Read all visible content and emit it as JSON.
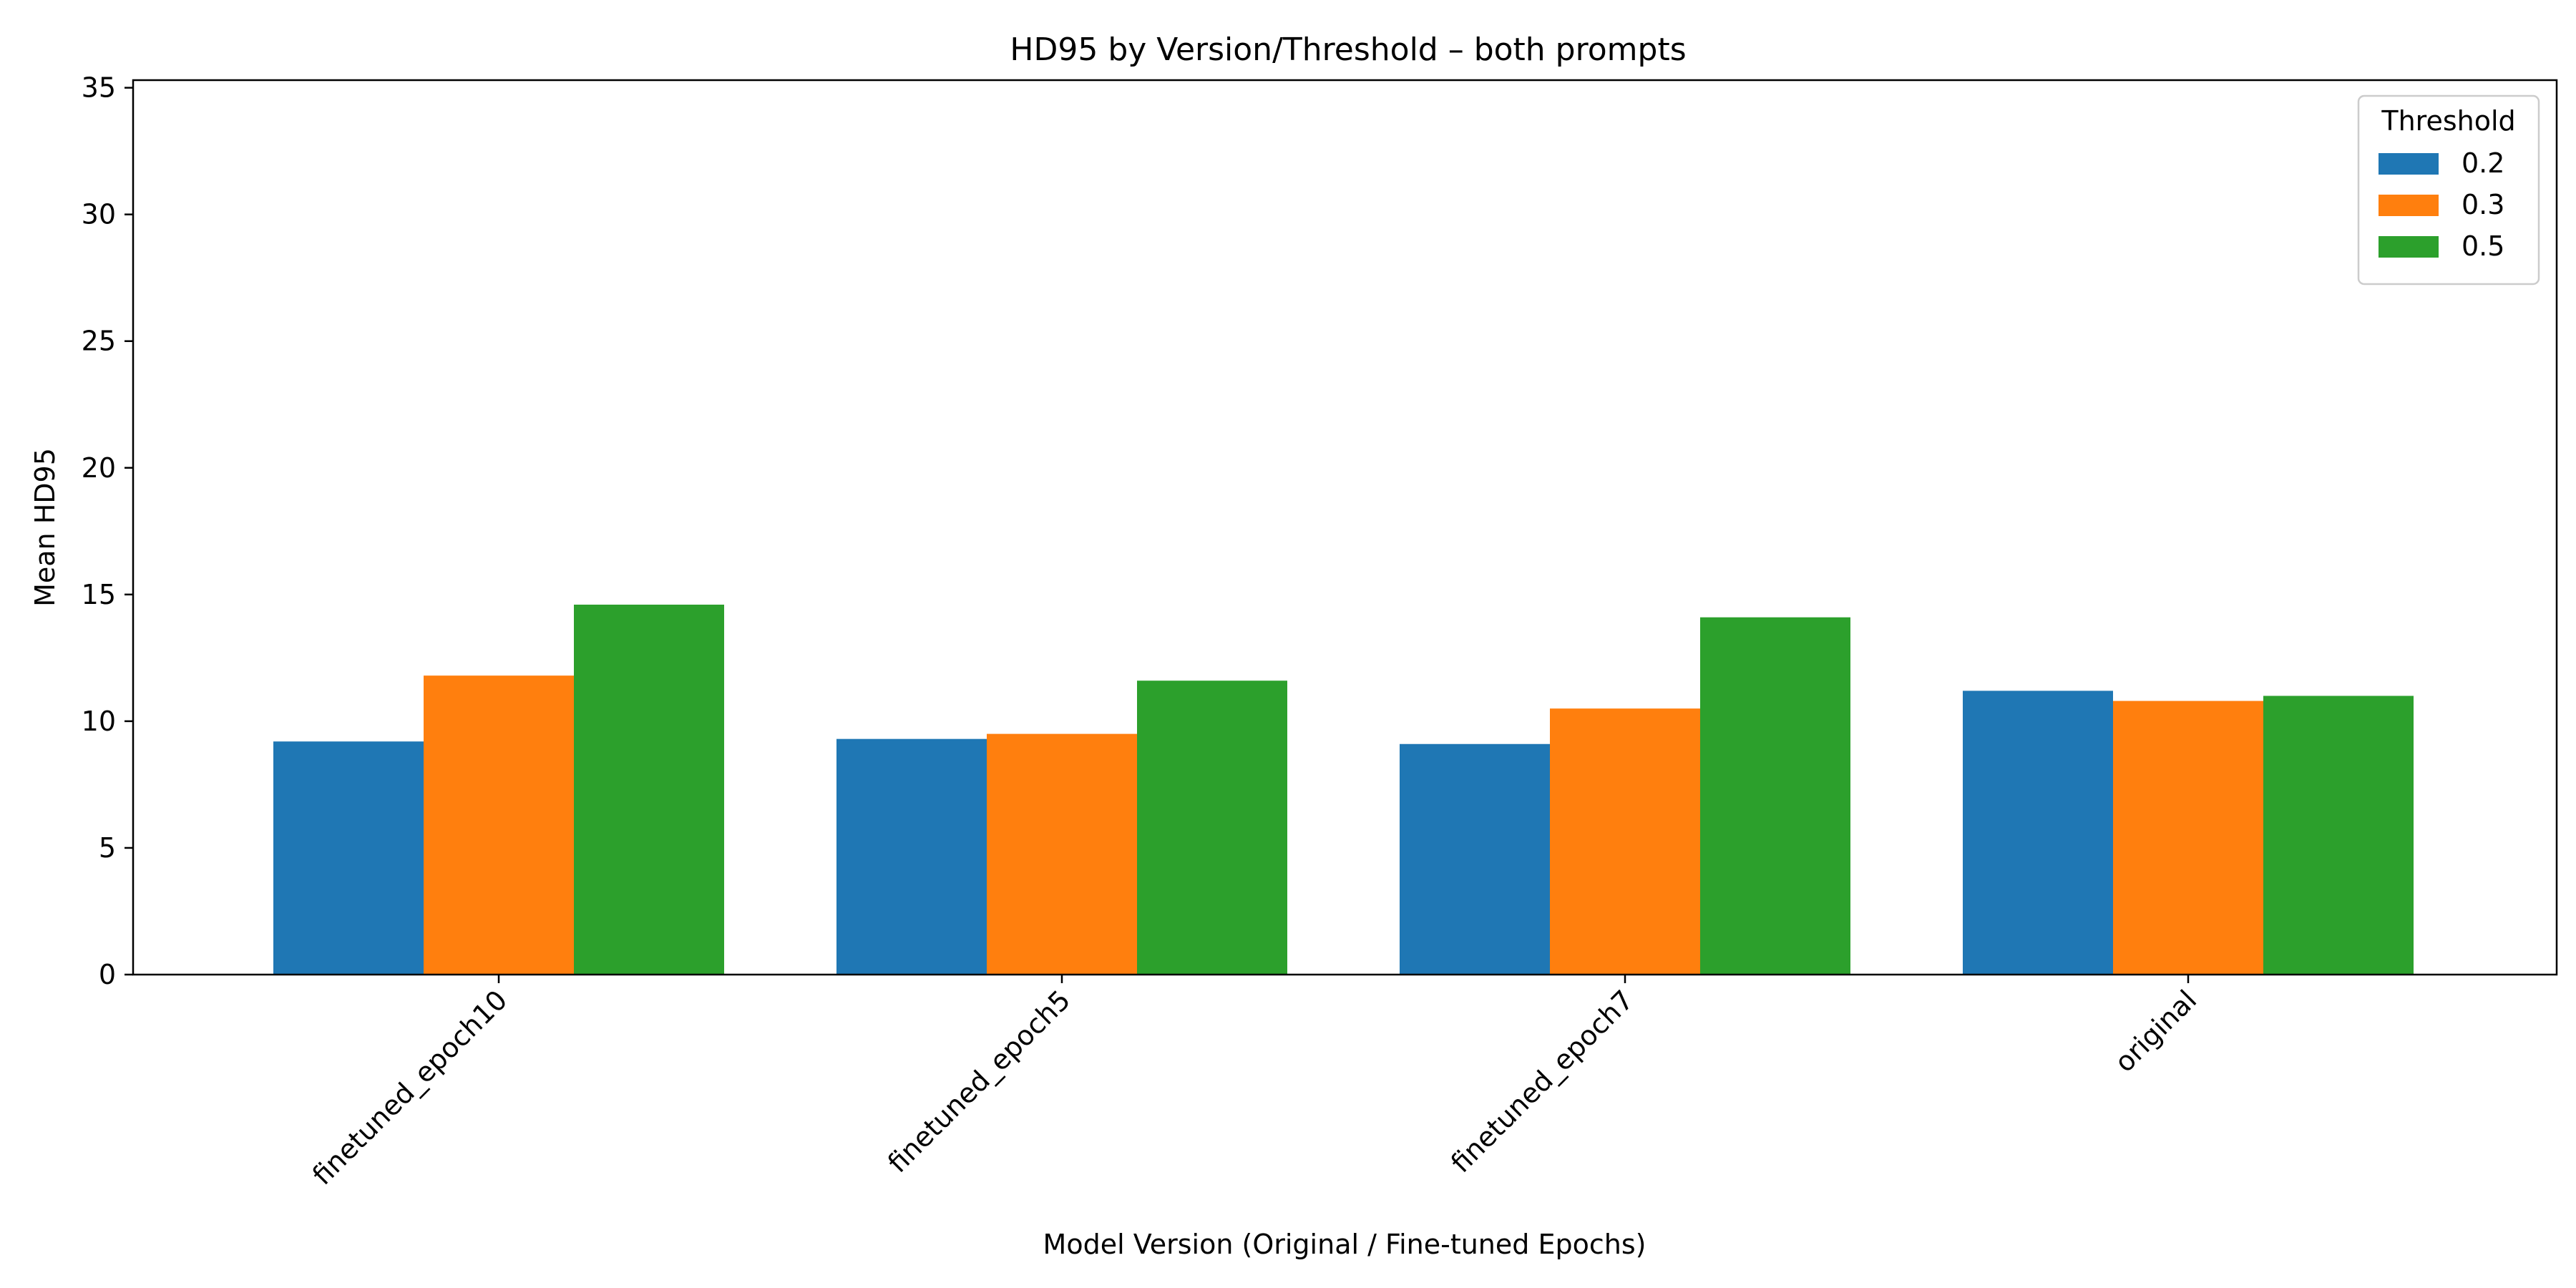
{
  "chart_data": {
    "type": "bar",
    "title": "HD95 by Version/Threshold – both prompts",
    "xlabel": "Model Version (Original / Fine-tuned Epochs)",
    "ylabel": "Mean HD95",
    "categories": [
      "finetuned_epoch10",
      "finetuned_epoch5",
      "finetuned_epoch7",
      "original"
    ],
    "series": [
      {
        "name": "0.2",
        "color": "#1f77b4",
        "values": [
          9.2,
          9.3,
          9.1,
          11.2
        ]
      },
      {
        "name": "0.3",
        "color": "#ff7f0e",
        "values": [
          11.8,
          9.5,
          10.5,
          10.8
        ]
      },
      {
        "name": "0.5",
        "color": "#2ca02c",
        "values": [
          14.6,
          11.6,
          14.1,
          11.0
        ]
      }
    ],
    "ylim": [
      0,
      35.3
    ],
    "yticks": [
      0,
      5,
      10,
      15,
      20,
      25,
      30,
      35
    ],
    "grid": false,
    "legend": {
      "title": "Threshold",
      "placement": "top-right"
    }
  }
}
